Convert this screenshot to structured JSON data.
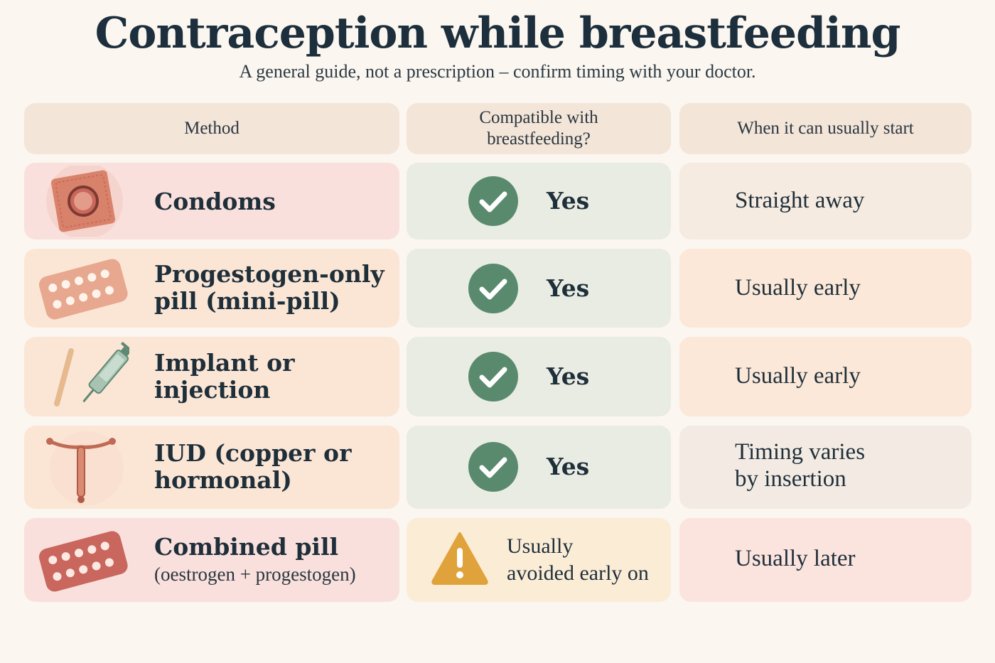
{
  "title": "Contraception while breastfeeding",
  "subtitle": "A general guide, not a prescription – confirm timing with your doctor.",
  "headers": {
    "method": "Method",
    "compatible_line1": "Compatible with",
    "compatible_line2": "breastfeeding?",
    "start": "When it can usually start"
  },
  "rows": [
    {
      "method": "Condoms",
      "method_line2": "",
      "method_sub": "",
      "compatible": "Yes",
      "compatible_line2": "",
      "status": "check",
      "start": "Straight away",
      "start_line2": "",
      "icon": "condom-icon"
    },
    {
      "method": "Progestogen-only",
      "method_line2": "pill (mini-pill)",
      "method_sub": "",
      "compatible": "Yes",
      "compatible_line2": "",
      "status": "check",
      "start": "Usually early",
      "start_line2": "",
      "icon": "pill-pack-icon"
    },
    {
      "method": "Implant or",
      "method_line2": "injection",
      "method_sub": "",
      "compatible": "Yes",
      "compatible_line2": "",
      "status": "check",
      "start": "Usually early",
      "start_line2": "",
      "icon": "implant-syringe-icon"
    },
    {
      "method": "IUD (copper or",
      "method_line2": "hormonal)",
      "method_sub": "",
      "compatible": "Yes",
      "compatible_line2": "",
      "status": "check",
      "start": "Timing varies",
      "start_line2": "by insertion",
      "icon": "iud-icon"
    },
    {
      "method": "Combined pill",
      "method_line2": "",
      "method_sub": "(oestrogen + progestogen)",
      "compatible": "Usually",
      "compatible_line2": "avoided early on",
      "status": "warning",
      "start": "Usually later",
      "start_line2": "",
      "icon": "combined-pill-pack-icon"
    }
  ],
  "colors": {
    "check_green": "#5a8a6e",
    "warning_amber": "#e0a23a",
    "header_bg": "#f3e5d8",
    "compat_bg": "#e9ece3",
    "warn_bg": "#fbecd6"
  }
}
